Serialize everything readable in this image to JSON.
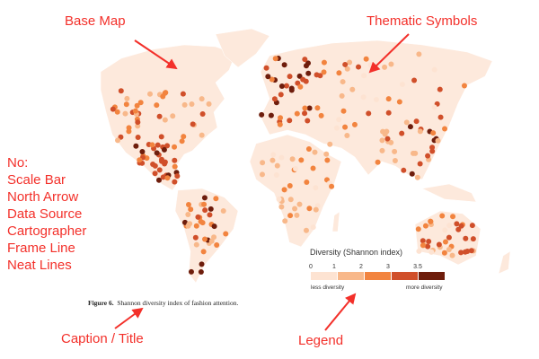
{
  "annotations": {
    "base_map": "Base Map",
    "thematic_symbols": "Thematic Symbols",
    "missing_heading": "No:",
    "missing_items": [
      "Scale Bar",
      "North Arrow",
      "Data Source",
      "Cartographer",
      "Frame Line",
      "Neat Lines"
    ],
    "caption_title": "Caption / Title",
    "legend": "Legend"
  },
  "colors": {
    "annotation": "#f3302a",
    "land": "#fde9dc"
  },
  "legend": {
    "title": "Diversity (Shannon index)",
    "ticks": [
      "0",
      "1",
      "2",
      "3",
      "3.5"
    ],
    "classes": [
      "#fde3d2",
      "#f8b88a",
      "#f2843f",
      "#d04f2a",
      "#6e1d0c"
    ],
    "low_label": "less diversity",
    "high_label": "more diversity"
  },
  "caption": {
    "label": "Figure 6.",
    "text": "Shannon diversity index of fashion attention."
  }
}
